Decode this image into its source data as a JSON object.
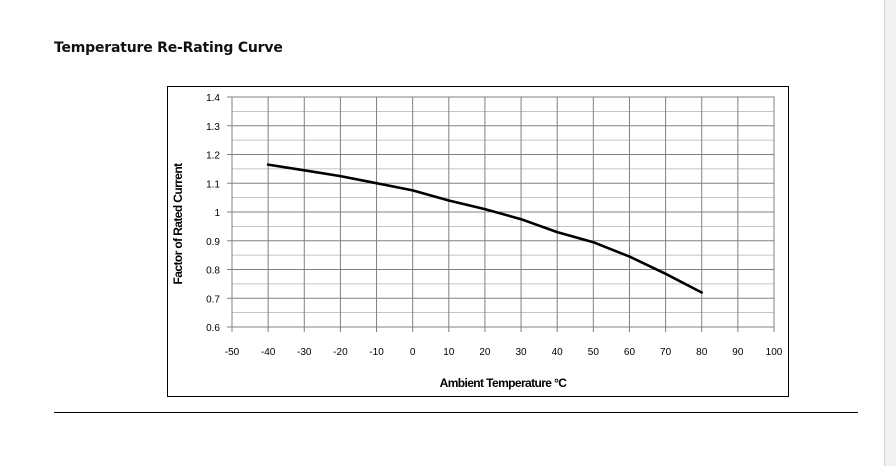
{
  "section": {
    "title": "Temperature Re-Rating Curve"
  },
  "chart_data": {
    "type": "line",
    "title": "",
    "xlabel": "Ambient Temperature °C",
    "ylabel": "Factor of Rated Current",
    "xlim": [
      -50,
      100
    ],
    "ylim": [
      0.6,
      1.4
    ],
    "x_ticks": [
      -50,
      -40,
      -30,
      -20,
      -10,
      0,
      10,
      20,
      30,
      40,
      50,
      60,
      70,
      80,
      90,
      100
    ],
    "x_tick_labels": [
      "-50",
      "-40",
      "-30",
      "-20",
      "-10",
      "0",
      "10",
      "20",
      "30",
      "40",
      "50",
      "60",
      "70",
      "80",
      "90",
      "100"
    ],
    "y_ticks": [
      0.6,
      0.7,
      0.8,
      0.9,
      1.0,
      1.1,
      1.2,
      1.3,
      1.4
    ],
    "y_tick_labels": [
      "0.6",
      "0.7",
      "0.8",
      "0.9",
      "1",
      "1.1",
      "1.2",
      "1.3",
      "1.4"
    ],
    "grid": true,
    "series": [
      {
        "x": [
          -40,
          -30,
          -20,
          -10,
          0,
          10,
          20,
          30,
          40,
          50,
          60,
          70,
          80
        ],
        "y": [
          1.165,
          1.145,
          1.125,
          1.1,
          1.075,
          1.04,
          1.01,
          0.975,
          0.93,
          0.895,
          0.845,
          0.785,
          0.72
        ],
        "color": "#000000"
      }
    ]
  }
}
